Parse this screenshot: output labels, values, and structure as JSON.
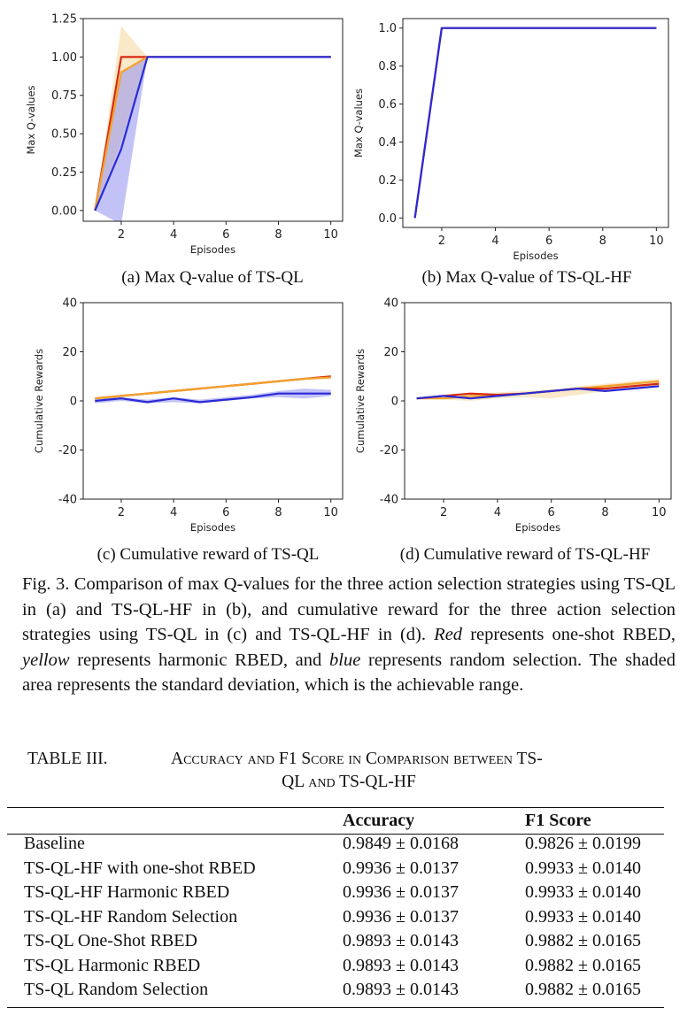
{
  "figure": {
    "subcaptions": {
      "a": "(a) Max Q-value of TS-QL",
      "b": "(b) Max Q-value of TS-QL-HF",
      "c": "(c) Cumulative reward of TS-QL",
      "d": "(d) Cumulative reward of TS-QL-HF"
    },
    "caption_parts": {
      "p1": "Fig. 3. Comparison of max Q-values for the three action selection strategies using TS-QL in (a) and TS-QL-HF in (b), and cumulative reward for the three action selection strategies using TS-QL in (c) and TS-QL-HF in (d). ",
      "red": "Red",
      "p2": " represents one-shot RBED, ",
      "yellow": "yellow",
      "p3": " represents harmonic RBED, and ",
      "blue": "blue",
      "p4": " represents random selection. The shaded area represents the standard deviation, which is the achievable range."
    }
  },
  "colors": {
    "red": "#d62a12",
    "orange": "#f2a12c",
    "yellow_band": "#f6d79a",
    "blue": "#2a2ad6",
    "blue_band": "#8f8ff0"
  },
  "chart_data": [
    {
      "id": "a",
      "type": "line",
      "xlabel": "Episodes",
      "ylabel": "Max Q-values",
      "xlim": [
        0.55,
        10.45
      ],
      "ylim": [
        -0.07,
        1.25
      ],
      "xticks": [
        2,
        4,
        6,
        8,
        10
      ],
      "yticks": [
        0.0,
        0.25,
        0.5,
        0.75,
        1.0,
        1.25
      ],
      "ytick_labels": [
        "0.00",
        "0.25",
        "0.50",
        "0.75",
        "1.00",
        "1.25"
      ],
      "bands": [
        {
          "color": "yellow_band",
          "x": [
            1,
            2,
            3
          ],
          "upper": [
            0.0,
            1.2,
            1.0
          ],
          "lower": [
            0.0,
            0.45,
            1.0
          ]
        },
        {
          "color": "blue_band",
          "x": [
            1,
            2,
            3
          ],
          "upper": [
            0.0,
            0.9,
            1.0
          ],
          "lower": [
            0.0,
            -0.09,
            1.0
          ]
        }
      ],
      "series": [
        {
          "color": "red",
          "x": [
            1,
            2,
            3,
            4,
            5,
            6,
            7,
            8,
            9,
            10
          ],
          "values": [
            0.0,
            1.0,
            1.0,
            1.0,
            1.0,
            1.0,
            1.0,
            1.0,
            1.0,
            1.0
          ]
        },
        {
          "color": "orange",
          "x": [
            1,
            2,
            3,
            4,
            5,
            6,
            7,
            8,
            9,
            10
          ],
          "values": [
            0.0,
            0.9,
            1.0,
            1.0,
            1.0,
            1.0,
            1.0,
            1.0,
            1.0,
            1.0
          ]
        },
        {
          "color": "blue",
          "x": [
            1,
            2,
            3,
            4,
            5,
            6,
            7,
            8,
            9,
            10
          ],
          "values": [
            0.0,
            0.4,
            1.0,
            1.0,
            1.0,
            1.0,
            1.0,
            1.0,
            1.0,
            1.0
          ]
        }
      ]
    },
    {
      "id": "b",
      "type": "line",
      "xlabel": "Episodes",
      "ylabel": "Max Q-values",
      "xlim": [
        0.55,
        10.45
      ],
      "ylim": [
        -0.05,
        1.05
      ],
      "xticks": [
        2,
        4,
        6,
        8,
        10
      ],
      "yticks": [
        0.0,
        0.2,
        0.4,
        0.6,
        0.8,
        1.0
      ],
      "ytick_labels": [
        "0.0",
        "0.2",
        "0.4",
        "0.6",
        "0.8",
        "1.0"
      ],
      "bands": [],
      "series": [
        {
          "color": "red",
          "x": [
            1,
            2,
            3,
            4,
            5,
            6,
            7,
            8,
            9,
            10
          ],
          "values": [
            0.0,
            1.0,
            1.0,
            1.0,
            1.0,
            1.0,
            1.0,
            1.0,
            1.0,
            1.0
          ]
        },
        {
          "color": "blue",
          "x": [
            1,
            2,
            3,
            4,
            5,
            6,
            7,
            8,
            9,
            10
          ],
          "values": [
            0.0,
            1.0,
            1.0,
            1.0,
            1.0,
            1.0,
            1.0,
            1.0,
            1.0,
            1.0
          ]
        }
      ]
    },
    {
      "id": "c",
      "type": "line",
      "xlabel": "Episodes",
      "ylabel": "Cumulative Rewards",
      "xlim": [
        0.55,
        10.45
      ],
      "ylim": [
        -40,
        40
      ],
      "xticks": [
        2,
        4,
        6,
        8,
        10
      ],
      "yticks": [
        -40,
        -20,
        0,
        20,
        40
      ],
      "ytick_labels": [
        "-40",
        "-20",
        "0",
        "20",
        "40"
      ],
      "bands": [
        {
          "color": "yellow_band",
          "x": [
            1,
            2,
            3,
            4,
            5,
            6,
            7,
            8,
            9,
            10
          ],
          "upper": [
            1.5,
            2.5,
            3.5,
            4.5,
            5.5,
            6.5,
            7.5,
            8.5,
            9.5,
            10.5
          ],
          "lower": [
            0.5,
            1.5,
            2.5,
            3.5,
            4.5,
            5.5,
            6.5,
            7.5,
            8.5,
            9.5
          ]
        },
        {
          "color": "blue_band",
          "x": [
            1,
            2,
            3,
            4,
            5,
            6,
            7,
            8,
            9,
            10
          ],
          "upper": [
            0.5,
            1.5,
            0.5,
            1.5,
            0.5,
            1.5,
            2.5,
            4.0,
            5.0,
            4.5
          ],
          "lower": [
            -1.0,
            0.0,
            -1.0,
            -0.5,
            -1.0,
            0.0,
            1.0,
            1.5,
            1.0,
            2.0
          ]
        }
      ],
      "series": [
        {
          "color": "red",
          "x": [
            1,
            2,
            3,
            4,
            5,
            6,
            7,
            8,
            9,
            10
          ],
          "values": [
            1,
            2,
            3,
            4,
            5,
            6,
            7,
            8,
            9,
            10
          ]
        },
        {
          "color": "orange",
          "x": [
            1,
            2,
            3,
            4,
            5,
            6,
            7,
            8,
            9,
            10
          ],
          "values": [
            1,
            2,
            3,
            4,
            5,
            6,
            7,
            8,
            9,
            9.5
          ]
        },
        {
          "color": "blue",
          "x": [
            1,
            2,
            3,
            4,
            5,
            6,
            7,
            8,
            9,
            10
          ],
          "values": [
            0,
            1,
            -0.5,
            1,
            -0.5,
            0.5,
            1.5,
            3,
            3,
            3
          ]
        }
      ]
    },
    {
      "id": "d",
      "type": "line",
      "xlabel": "Episodes",
      "ylabel": "Cumulative Rewards",
      "xlim": [
        0.55,
        10.45
      ],
      "ylim": [
        -40,
        40
      ],
      "xticks": [
        2,
        4,
        6,
        8,
        10
      ],
      "yticks": [
        -40,
        -20,
        0,
        20,
        40
      ],
      "ytick_labels": [
        "-40",
        "-20",
        "0",
        "20",
        "40"
      ],
      "bands": [
        {
          "color": "yellow_band",
          "x": [
            1,
            2,
            3,
            4,
            5,
            6,
            7,
            8,
            9,
            10
          ],
          "upper": [
            1,
            1.5,
            2.5,
            3.5,
            4,
            4.5,
            6,
            7,
            8,
            9
          ],
          "lower": [
            1,
            0.5,
            0,
            1.0,
            1.5,
            1.0,
            2.5,
            4,
            5,
            6
          ]
        }
      ],
      "series": [
        {
          "color": "orange",
          "x": [
            1,
            2,
            3,
            4,
            5,
            6,
            7,
            8,
            9,
            10
          ],
          "values": [
            1,
            1,
            2,
            2,
            3,
            4,
            5,
            6,
            7,
            8
          ]
        },
        {
          "color": "red",
          "x": [
            1,
            2,
            3,
            4,
            5,
            6,
            7,
            8,
            9,
            10
          ],
          "values": [
            1,
            2,
            3,
            2.5,
            3,
            4,
            5,
            5,
            6,
            7
          ]
        },
        {
          "color": "blue",
          "x": [
            1,
            2,
            3,
            4,
            5,
            6,
            7,
            8,
            9,
            10
          ],
          "values": [
            1,
            2,
            1,
            2,
            3,
            4,
            5,
            4,
            5,
            6
          ]
        }
      ]
    }
  ],
  "table": {
    "number": "TABLE III.",
    "title_line1": "Accuracy and F1 Score in Comparison between TS-",
    "title_line2": "QL and TS-QL-HF",
    "headers": [
      "",
      "Accuracy",
      "F1 Score"
    ],
    "rows": [
      [
        "Baseline",
        "0.9849 ± 0.0168",
        "0.9826 ± 0.0199"
      ],
      [
        "TS-QL-HF with one-shot RBED",
        "0.9936 ± 0.0137",
        "0.9933 ± 0.0140"
      ],
      [
        "TS-QL-HF Harmonic RBED",
        "0.9936 ± 0.0137",
        "0.9933 ± 0.0140"
      ],
      [
        "TS-QL-HF Random Selection",
        "0.9936 ± 0.0137",
        "0.9933 ± 0.0140"
      ],
      [
        "TS-QL One-Shot RBED",
        "0.9893 ± 0.0143",
        "0.9882 ± 0.0165"
      ],
      [
        "TS-QL Harmonic RBED",
        "0.9893 ± 0.0143",
        "0.9882 ± 0.0165"
      ],
      [
        "TS-QL Random Selection",
        "0.9893 ± 0.0143",
        "0.9882 ± 0.0165"
      ]
    ]
  }
}
